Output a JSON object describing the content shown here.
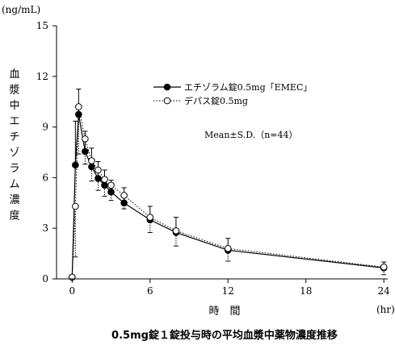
{
  "chart_data": {
    "type": "line",
    "caption": "0.5mg錠１錠投与時の平均血漿中薬物濃度推移",
    "y_unit": "(ng/mL)",
    "ylabel": "血漿中エチゾラム濃度",
    "xlabel": "時　間",
    "x_unit": "(hr)",
    "xlim": [
      -1.2,
      24.3
    ],
    "ylim": [
      0,
      15
    ],
    "xticks": [
      0,
      6,
      12,
      18,
      24
    ],
    "yticks": [
      0,
      3,
      6,
      9,
      12,
      15
    ],
    "annotation": "Mean±S.D.（n=44）",
    "legend_position": "upper-center",
    "series": [
      {
        "name": "エチゾラム錠0.5mg「EMEC」",
        "marker": "filled-circle",
        "line_style": "solid",
        "x": [
          0,
          0.25,
          0.5,
          1,
          1.5,
          2,
          2.5,
          3,
          4,
          6,
          8,
          12,
          24
        ],
        "y": [
          0.1,
          6.75,
          9.75,
          7.55,
          6.65,
          5.95,
          5.55,
          5.15,
          4.5,
          3.5,
          2.75,
          1.7,
          0.65
        ],
        "sd": [
          0,
          2.6,
          1.5,
          1.2,
          1.1,
          1.0,
          0.9,
          0.7,
          0.9,
          0.8,
          0.9,
          0.7,
          0.35
        ]
      },
      {
        "name": "デパス錠0.5mg",
        "marker": "open-circle",
        "line_style": "dotted",
        "x": [
          0,
          0.25,
          0.5,
          1,
          1.5,
          2,
          2.5,
          3,
          4,
          6,
          8,
          12,
          24
        ],
        "y": [
          0.1,
          4.3,
          10.2,
          8.3,
          7.0,
          6.45,
          5.9,
          5.55,
          4.95,
          3.65,
          2.85,
          1.8,
          0.7
        ],
        "sd": [
          0,
          3.0,
          2.8,
          1.5,
          1.2,
          1.2,
          1.0,
          0.9,
          0.8,
          0.9,
          0.9,
          0.75,
          0.45
        ]
      }
    ]
  }
}
